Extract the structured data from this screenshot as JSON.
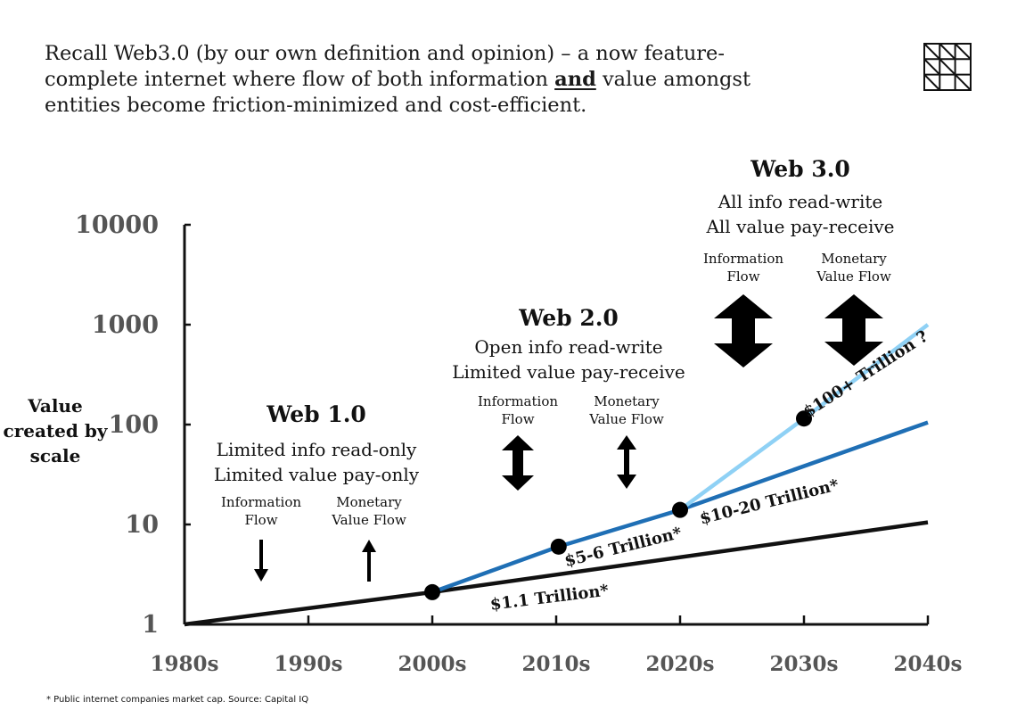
{
  "headline": {
    "part1": "Recall Web3.0 (by our own definition and opinion) – a now feature-complete internet where flow of both information ",
    "emphasis": "and",
    "part2": " value amongst entities become friction-minimized and cost-efficient."
  },
  "logo": {
    "icon": "grid-logo-icon"
  },
  "footnote": "* Public internet companies market cap. Source: Capital IQ",
  "colors": {
    "black_line": "#111111",
    "dark_blue": "#1f6fb5",
    "light_blue": "#8fd1f5"
  },
  "chart_data": {
    "type": "line",
    "yscale": "log",
    "ylabel_lines": [
      "Value",
      "created by",
      "scale"
    ],
    "x_ticks": [
      "1980s",
      "1990s",
      "2000s",
      "2010s",
      "2020s",
      "2030s",
      "2040s"
    ],
    "x_index_range": [
      0,
      6
    ],
    "y_ticks": [
      1,
      10,
      100,
      1000,
      10000
    ],
    "ylim": [
      1,
      10000
    ],
    "series": [
      {
        "name": "web1",
        "color": "#111111",
        "points": [
          [
            0,
            1
          ],
          [
            2,
            2.1
          ],
          [
            6,
            10.5
          ]
        ]
      },
      {
        "name": "web2",
        "color": "#1f6fb5",
        "points": [
          [
            2,
            2.1
          ],
          [
            3.02,
            6
          ],
          [
            4,
            14
          ],
          [
            6,
            105
          ]
        ]
      },
      {
        "name": "web3",
        "color": "#8fd1f5",
        "points": [
          [
            4,
            14
          ],
          [
            5,
            115
          ],
          [
            6,
            1000
          ]
        ]
      }
    ],
    "markers": [
      [
        2,
        2.1
      ],
      [
        3.02,
        6
      ],
      [
        4,
        14
      ],
      [
        5,
        115
      ]
    ],
    "data_labels": [
      {
        "text": "$1.1 Trillion*",
        "x": 2.95,
        "y": 1.65,
        "rotate": -7
      },
      {
        "text": "$5-6 Trillion*",
        "x": 3.55,
        "y": 5.3,
        "rotate": -14
      },
      {
        "text": "$10-20 Trillion*",
        "x": 4.73,
        "y": 15,
        "rotate": -14
      },
      {
        "text": "$100+ Trillion ?",
        "x": 5.52,
        "y": 290,
        "rotate": -33
      }
    ],
    "eras": [
      {
        "title": "Web 1.0",
        "desc": [
          "Limited info read-only",
          "Limited value pay-only"
        ],
        "flows": [
          {
            "label": [
              "Information",
              "Flow"
            ],
            "arrow": "down"
          },
          {
            "label": [
              "Monetary",
              "Value Flow"
            ],
            "arrow": "up"
          }
        ]
      },
      {
        "title": "Web 2.0",
        "desc": [
          "Open info read-write",
          "Limited value pay-receive"
        ],
        "flows": [
          {
            "label": [
              "Information",
              "Flow"
            ],
            "arrow": "double"
          },
          {
            "label": [
              "Monetary",
              "Value Flow"
            ],
            "arrow": "double-thin"
          }
        ]
      },
      {
        "title": "Web 3.0",
        "desc": [
          "All info read-write",
          "All value pay-receive"
        ],
        "flows": [
          {
            "label": [
              "Information",
              "Flow"
            ],
            "arrow": "double-bold"
          },
          {
            "label": [
              "Monetary",
              "Value Flow"
            ],
            "arrow": "double-bold"
          }
        ]
      }
    ]
  }
}
